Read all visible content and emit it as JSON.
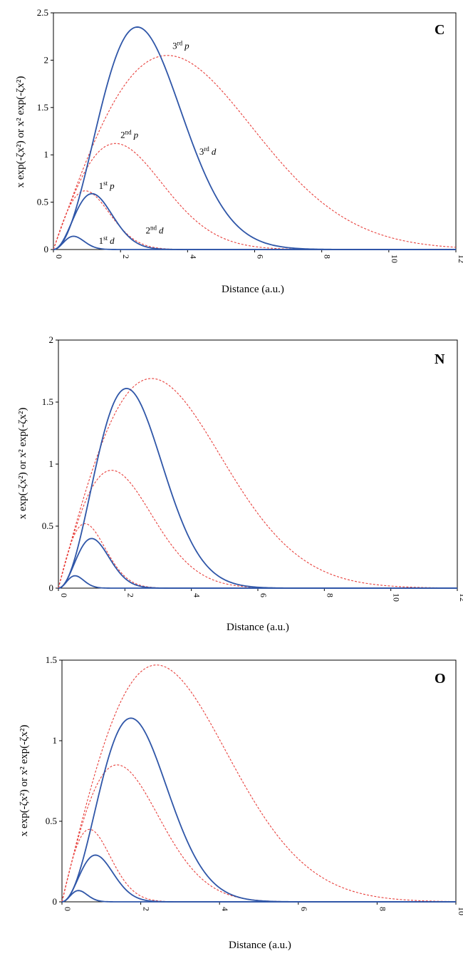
{
  "chart_data": [
    {
      "type": "line",
      "panel_letter": "C",
      "xlabel": "Distance (a.u.)",
      "ylabel": "x exp(-ζx²)  or  x² exp(-ζx²)",
      "xlim": [
        0,
        12
      ],
      "ylim": [
        0,
        2.5
      ],
      "x_ticks": [
        "0",
        "2",
        "4",
        "6",
        "8",
        "10",
        "12"
      ],
      "y_ticks": [
        "0",
        "0.5",
        "1",
        "1.5",
        "2",
        "2.5"
      ],
      "series": [
        {
          "name": "1st p",
          "kind": "p",
          "peak_x": 0.95,
          "peak_y": 0.62
        },
        {
          "name": "2nd p",
          "kind": "p",
          "peak_x": 1.85,
          "peak_y": 1.12
        },
        {
          "name": "3rd p",
          "kind": "p",
          "peak_x": 3.4,
          "peak_y": 2.05
        },
        {
          "name": "1st d",
          "kind": "d",
          "peak_x": 0.6,
          "peak_y": 0.14
        },
        {
          "name": "2nd d",
          "kind": "d",
          "peak_x": 1.15,
          "peak_y": 0.59
        },
        {
          "name": "3rd d",
          "kind": "d",
          "peak_x": 2.5,
          "peak_y": 2.35
        }
      ],
      "annotations": [
        {
          "ordinal": "3",
          "suffix": "rd",
          "orb": "p",
          "x": 3.55,
          "y": 2.12
        },
        {
          "ordinal": "2",
          "suffix": "nd",
          "orb": "p",
          "x": 2.0,
          "y": 1.18
        },
        {
          "ordinal": "3",
          "suffix": "rd",
          "orb": "d",
          "x": 4.35,
          "y": 1.0
        },
        {
          "ordinal": "1",
          "suffix": "st",
          "orb": "p",
          "x": 1.35,
          "y": 0.64
        },
        {
          "ordinal": "2",
          "suffix": "nd",
          "orb": "d",
          "x": 2.75,
          "y": 0.17
        },
        {
          "ordinal": "1",
          "suffix": "st",
          "orb": "d",
          "x": 1.35,
          "y": 0.06
        }
      ]
    },
    {
      "type": "line",
      "panel_letter": "N",
      "xlabel": "Distance (a.u.)",
      "ylabel": "x exp(-ζx²)  or  x² exp(-ζx²)",
      "xlim": [
        0,
        12
      ],
      "ylim": [
        0,
        2
      ],
      "x_ticks": [
        "0",
        "2",
        "4",
        "6",
        "8",
        "10",
        "12"
      ],
      "y_ticks": [
        "0",
        "0.5",
        "1",
        "1.5",
        "2"
      ],
      "series": [
        {
          "kind": "p",
          "peak_x": 0.8,
          "peak_y": 0.52
        },
        {
          "kind": "p",
          "peak_x": 1.6,
          "peak_y": 0.95
        },
        {
          "kind": "p",
          "peak_x": 2.8,
          "peak_y": 1.69
        },
        {
          "kind": "d",
          "peak_x": 0.5,
          "peak_y": 0.1
        },
        {
          "kind": "d",
          "peak_x": 1.0,
          "peak_y": 0.4
        },
        {
          "kind": "d",
          "peak_x": 2.05,
          "peak_y": 1.61
        }
      ],
      "annotations": []
    },
    {
      "type": "line",
      "panel_letter": "O",
      "xlabel": "Distance (a.u.)",
      "ylabel": "x exp(-ζx²)  or  x² exp(-ζx²)",
      "xlim": [
        0,
        10
      ],
      "ylim": [
        0,
        1.5
      ],
      "x_ticks": [
        "0",
        "2",
        "4",
        "6",
        "8",
        "10"
      ],
      "y_ticks": [
        "0",
        "0.5",
        "1",
        "1.5"
      ],
      "series": [
        {
          "kind": "p",
          "peak_x": 0.7,
          "peak_y": 0.45
        },
        {
          "kind": "p",
          "peak_x": 1.4,
          "peak_y": 0.85
        },
        {
          "kind": "p",
          "peak_x": 2.4,
          "peak_y": 1.47
        },
        {
          "kind": "d",
          "peak_x": 0.42,
          "peak_y": 0.07
        },
        {
          "kind": "d",
          "peak_x": 0.85,
          "peak_y": 0.29
        },
        {
          "kind": "d",
          "peak_x": 1.75,
          "peak_y": 1.14
        }
      ],
      "annotations": []
    }
  ],
  "colors": {
    "d_curve": "#2f56a8",
    "p_curve": "#e8403c",
    "axis": "#000000"
  }
}
